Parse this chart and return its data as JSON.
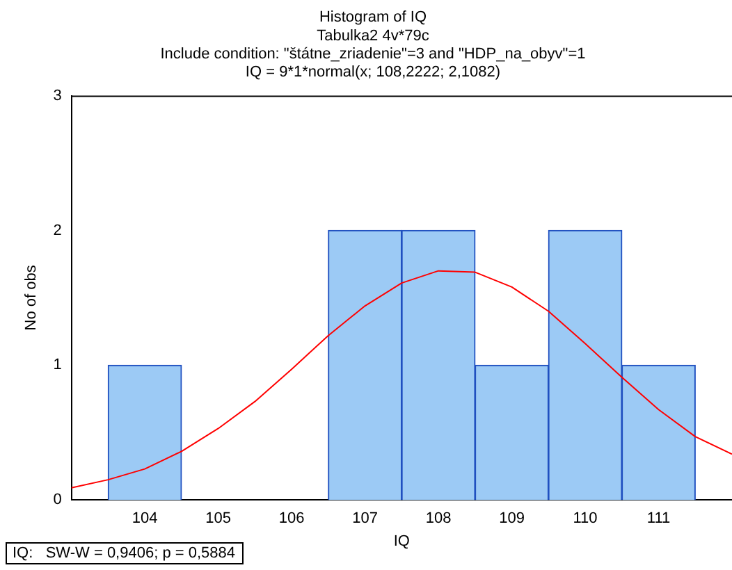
{
  "chart_data": {
    "type": "histogram",
    "title": "Histogram of IQ",
    "subtitle": "Tabulka2 4v*79c\nInclude condition: \"štátne_zriadenie\"=3 and \"HDP_na_obyv\"=1\nIQ = 9*1*normal(x; 108,2222; 2,1082)",
    "xlabel": "IQ",
    "ylabel": "No of obs",
    "bins": [
      103.5,
      104.5,
      105.5,
      106.5,
      107.5,
      108.5,
      109.5,
      110.5,
      111.5
    ],
    "values": [
      1,
      0,
      0,
      2,
      2,
      1,
      2,
      1
    ],
    "color": "#9ccaf5",
    "series": [
      {
        "type": "line",
        "color": "#ff0000",
        "x": [
          103,
          103.5,
          104,
          104.5,
          105,
          105.5,
          106,
          106.5,
          107,
          107.5,
          108,
          108.5,
          109,
          109.5,
          110,
          110.5,
          111,
          111.5,
          112
        ],
        "values": [
          0.09,
          0.15,
          0.23,
          0.36,
          0.53,
          0.73,
          0.97,
          1.22,
          1.44,
          1.61,
          1.7,
          1.69,
          1.58,
          1.4,
          1.16,
          0.91,
          0.67,
          0.47,
          0.34
        ]
      }
    ],
    "xlim": [
      103,
      112
    ],
    "xticks": [
      104,
      105,
      106,
      107,
      108,
      109,
      110,
      111
    ],
    "ylim": [
      0,
      3
    ],
    "yticks": [
      0,
      1,
      2,
      3
    ],
    "grid": false,
    "legend": false,
    "annotations": [
      "IQ:   SW-W = 0,9406; p = 0,5884"
    ]
  }
}
